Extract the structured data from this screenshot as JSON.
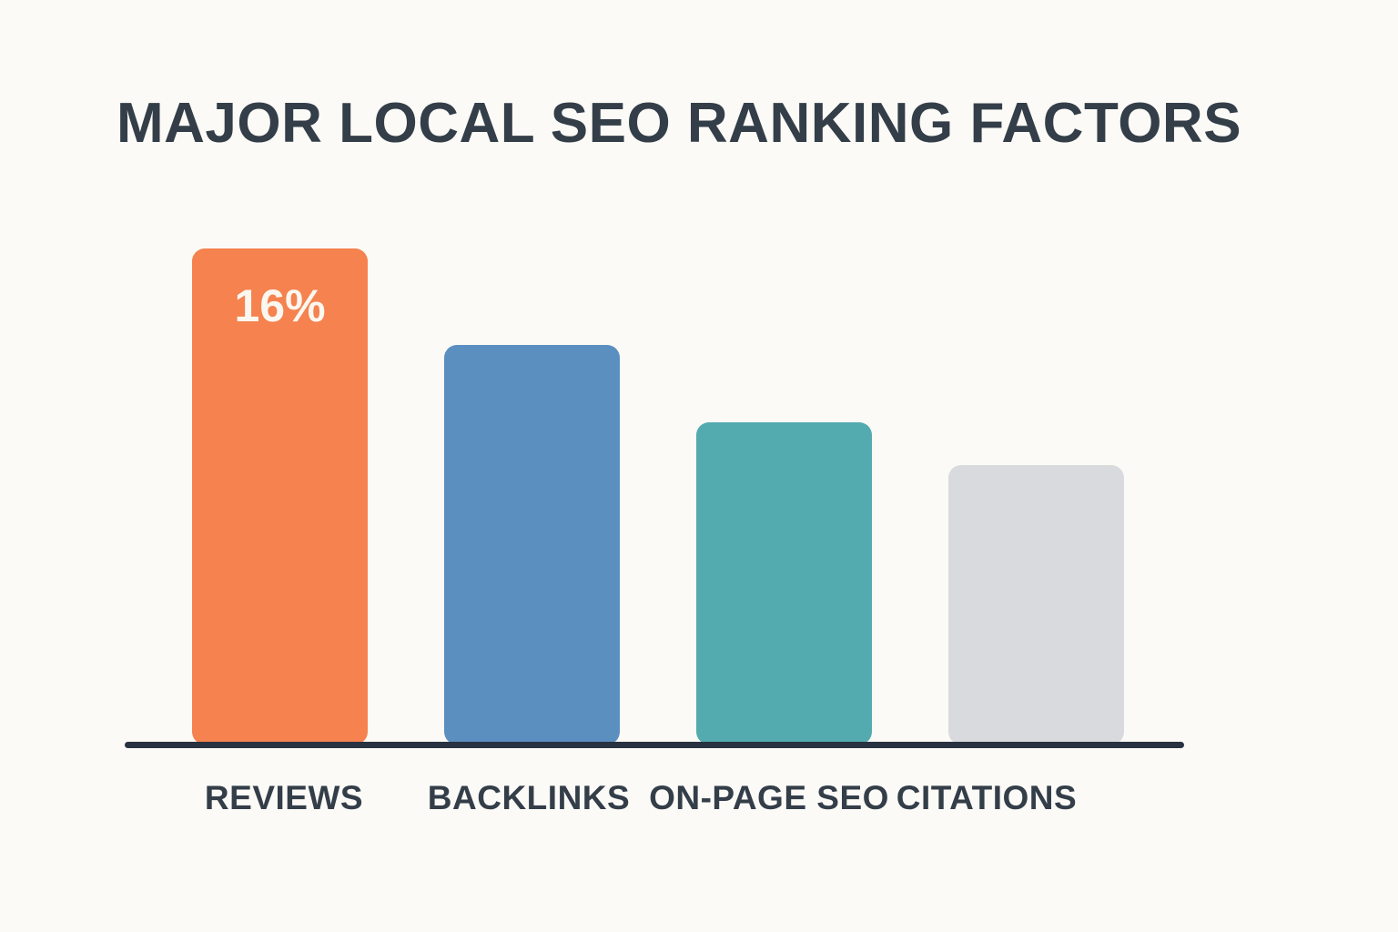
{
  "title": "MAJOR LOCAL SEO RANKING FACTORS",
  "colors": {
    "background": "#FCFAF6",
    "title_text": "#333E49",
    "axis_line": "#283241",
    "bar_value_text": "#FBF7F0"
  },
  "chart_data": {
    "type": "bar",
    "title": "MAJOR LOCAL SEO RANKING FACTORS",
    "categories": [
      "REVIEWS",
      "BACKLINKS",
      "ON-PAGE SEO",
      "CITATIONS"
    ],
    "values": [
      16,
      12.9,
      10.4,
      9
    ],
    "data_labels": [
      "16%",
      "",
      "",
      ""
    ],
    "bar_colors": [
      "#F5824F",
      "#5B8FC0",
      "#53ABB0",
      "#D9DADE"
    ],
    "xlabel": "",
    "ylabel": "",
    "ylim": [
      0,
      18
    ],
    "grid": false,
    "legend": "none",
    "notes": "Only the first bar (REVIEWS) displays a data label of 16%; remaining values estimated from bar heights."
  }
}
